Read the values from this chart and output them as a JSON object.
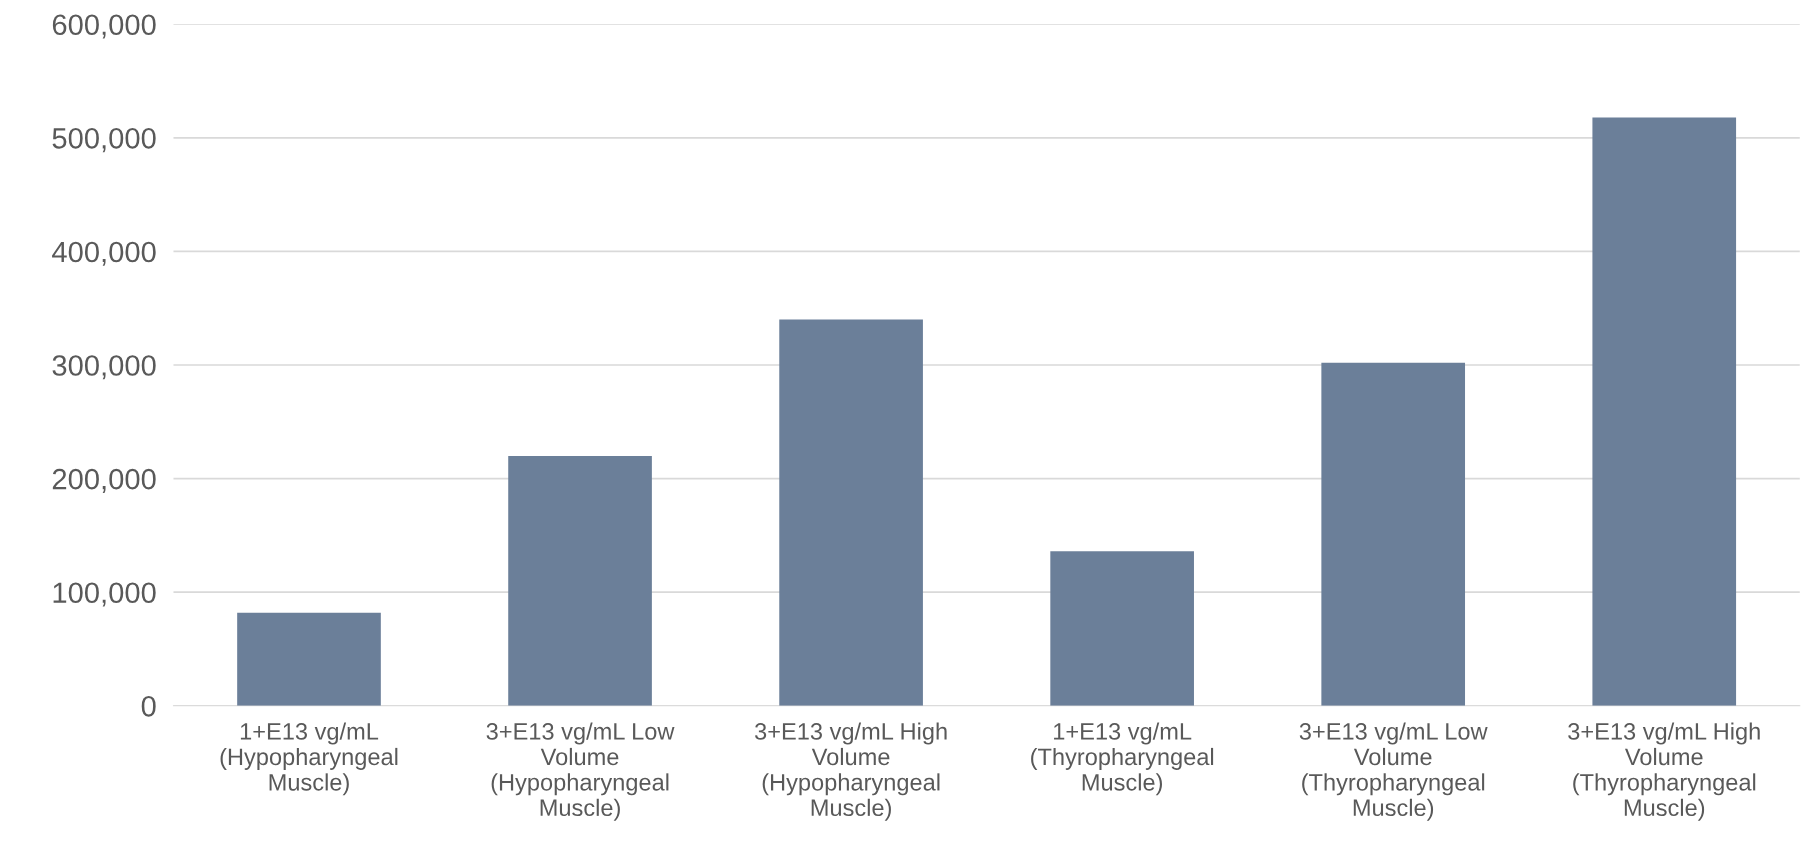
{
  "chart_data": {
    "type": "bar",
    "categories": [
      "1+E13 vg/mL\n(Hypopharyngeal\nMuscle)",
      "3+E13 vg/mL Low\nVolume\n(Hypopharyngeal\nMuscle)",
      "3+E13 vg/mL High\nVolume\n(Hypopharyngeal\nMuscle)",
      "1+E13 vg/mL\n(Thyropharyngeal\nMuscle)",
      "3+E13 vg/mL Low\nVolume\n(Thyropharyngeal\nMuscle)",
      "3+E13 vg/mL High\nVolume\n(Thyropharyngeal\nMuscle)"
    ],
    "values": [
      82000,
      220000,
      340000,
      136000,
      302000,
      518000
    ],
    "color": "#6b7f99",
    "ylim": [
      0,
      600000
    ],
    "yticks": [
      {
        "value": 0,
        "label": "0"
      },
      {
        "value": 100000,
        "label": "100,000"
      },
      {
        "value": 200000,
        "label": "200,000"
      },
      {
        "value": 300000,
        "label": "300,000"
      },
      {
        "value": 400000,
        "label": "400,000"
      },
      {
        "value": 500000,
        "label": "500,000"
      },
      {
        "value": 600000,
        "label": "600,000"
      }
    ],
    "grid": "y",
    "legend": false
  }
}
